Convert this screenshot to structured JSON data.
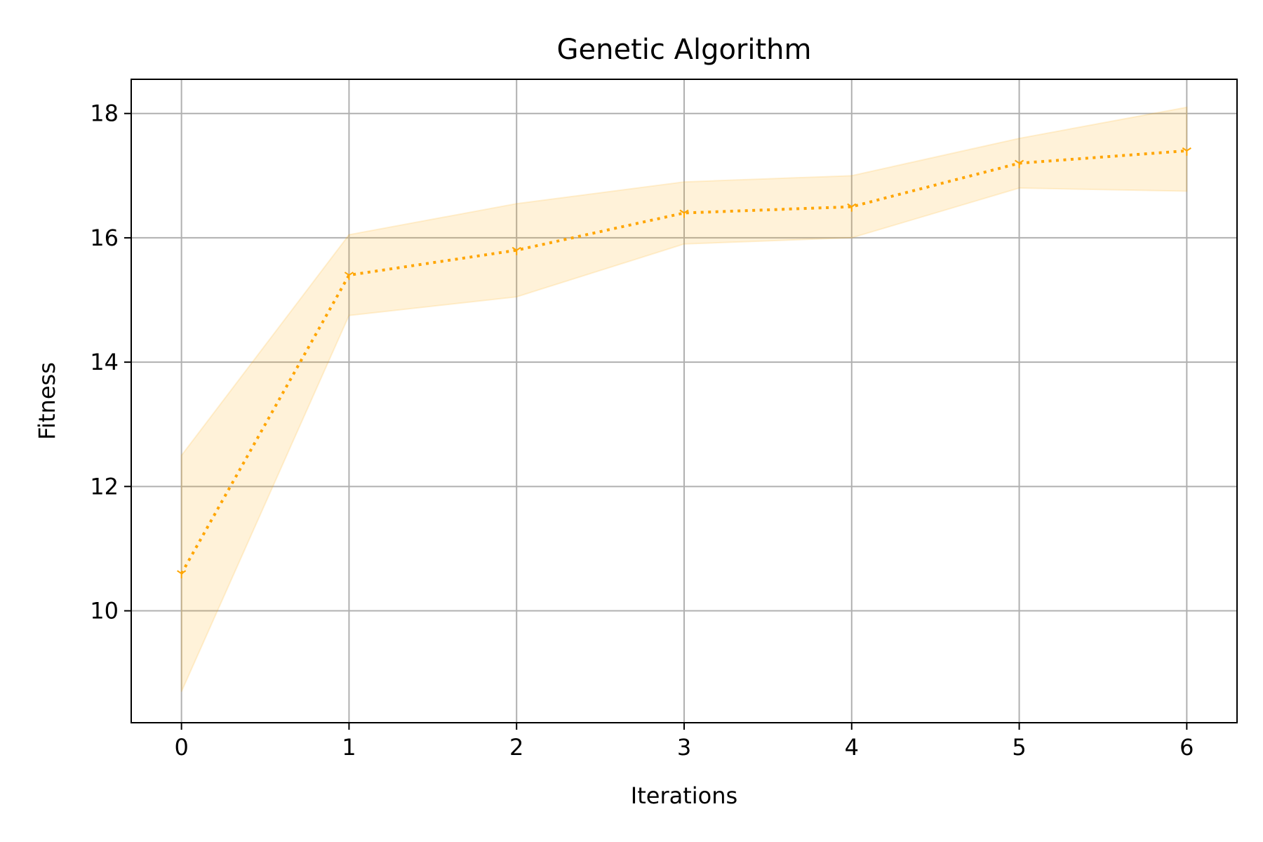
{
  "chart_data": {
    "type": "line",
    "title": "Genetic Algorithm",
    "xlabel": "Iterations",
    "ylabel": "Fitness",
    "x": [
      0,
      1,
      2,
      3,
      4,
      5,
      6
    ],
    "xlim": [
      -0.3,
      6.3
    ],
    "ylim": [
      8.2,
      18.55
    ],
    "xticks": [
      "0",
      "1",
      "2",
      "3",
      "4",
      "5",
      "6"
    ],
    "yticks": [
      "10",
      "12",
      "14",
      "16",
      "18"
    ],
    "grid": true,
    "series": [
      {
        "values": [
          10.6,
          15.4,
          15.8,
          16.4,
          16.5,
          17.2,
          17.4
        ],
        "lower": [
          8.7,
          14.75,
          15.05,
          15.9,
          16.0,
          16.8,
          16.75
        ],
        "upper": [
          12.5,
          16.05,
          16.55,
          16.9,
          17.0,
          17.6,
          18.1
        ],
        "color": "#ffa500",
        "line_style": "dotted",
        "marker": "tri-down"
      }
    ]
  }
}
